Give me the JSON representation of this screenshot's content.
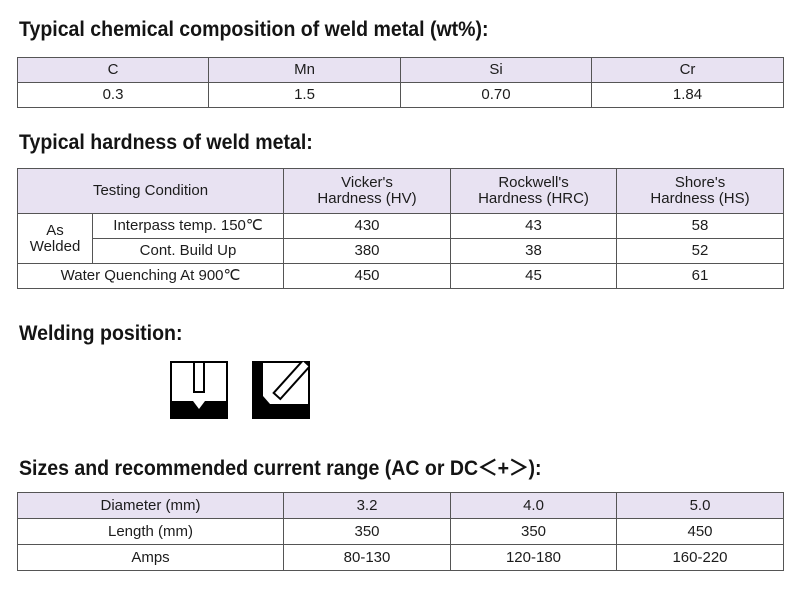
{
  "composition": {
    "title": "Typical chemical composition of weld metal (wt%):",
    "headers": [
      "C",
      "Mn",
      "Si",
      "Cr"
    ],
    "values": [
      "0.3",
      "1.5",
      "0.70",
      "1.84"
    ]
  },
  "hardness": {
    "title": "Typical hardness of weld metal:",
    "header_condition": "Testing Condition",
    "headers": [
      {
        "line1": "Vicker's",
        "line2": "Hardness (HV)"
      },
      {
        "line1": "Rockwell's",
        "line2": "Hardness (HRC)"
      },
      {
        "line1": "Shore's",
        "line2": "Hardness (HS)"
      }
    ],
    "as_welded_line1": "As",
    "as_welded_line2": "Welded",
    "rows": [
      {
        "condition": "Interpass temp. 150℃",
        "hv": "430",
        "hrc": "43",
        "hs": "58"
      },
      {
        "condition": "Cont. Build Up",
        "hv": "380",
        "hrc": "38",
        "hs": "52"
      },
      {
        "condition": "Water Quenching At 900℃",
        "hv": "450",
        "hrc": "45",
        "hs": "61"
      }
    ]
  },
  "welding_position": {
    "title": "Welding position:",
    "icons": [
      "flat-position-icon",
      "horizontal-fillet-position-icon"
    ]
  },
  "sizes": {
    "title": "Sizes and recommended current range (AC or DC＜+＞):",
    "rows": [
      {
        "label": "Diameter (mm)",
        "values": [
          "3.2",
          "4.0",
          "5.0"
        ]
      },
      {
        "label": "Length (mm)",
        "values": [
          "350",
          "350",
          "450"
        ]
      },
      {
        "label": "Amps",
        "values": [
          "80-130",
          "120-180",
          "160-220"
        ]
      }
    ]
  },
  "colors": {
    "header_fill": "#e8e2f2",
    "border": "#555555",
    "icon_fill": "#000000"
  }
}
